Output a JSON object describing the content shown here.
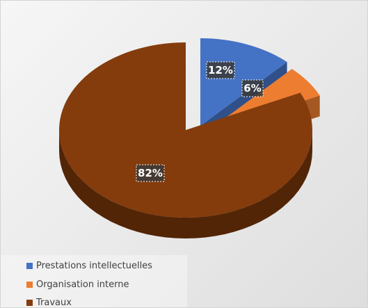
{
  "chart_data": {
    "type": "pie",
    "style": "3d-exploded",
    "title": "",
    "series": [
      {
        "values": [
          12,
          6,
          82
        ],
        "labels": [
          "12%",
          "6%",
          "82%"
        ]
      }
    ],
    "categories": [
      "Prestations intellectuelles",
      "Organisation interne",
      "Travaux"
    ],
    "colors": [
      "#4472C4",
      "#ED7D31",
      "#843C0C"
    ],
    "exploded": [
      0,
      0,
      0
    ],
    "data_labels": "inside, white bold on dark box",
    "legend_position": "bottom-left",
    "background": "#eeeeee"
  },
  "legend": {
    "items": [
      {
        "label": "Prestations intellectuelles",
        "color": "#4472C4"
      },
      {
        "label": "Organisation interne",
        "color": "#ED7D31"
      },
      {
        "label": "Travaux",
        "color": "#843C0C"
      }
    ]
  }
}
